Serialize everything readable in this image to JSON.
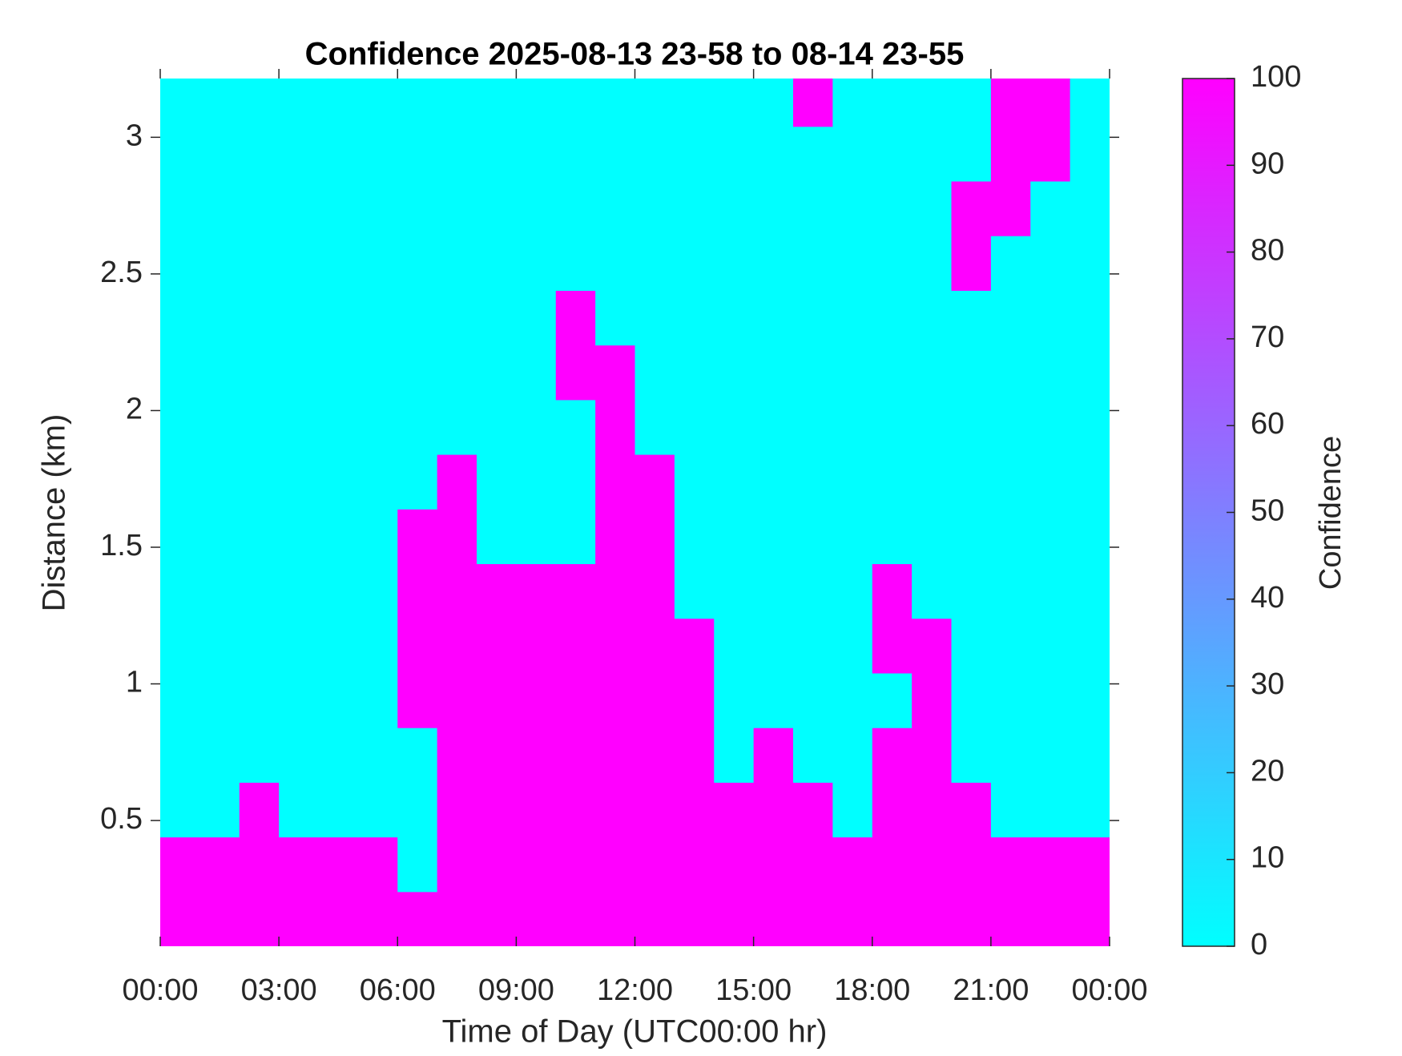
{
  "chart_data": {
    "type": "heatmap",
    "title": "Confidence 2025-08-13 23-58 to 08-14 23-55",
    "x_label": "Time of Day (UTC00:00 hr)",
    "y_label": "Distance (km)",
    "colorbar_label": "Confidence",
    "colormap": [
      "#00ffff",
      "#ff00ff"
    ],
    "x": [
      0.5,
      1.5,
      2.5,
      3.5,
      4.5,
      5.5,
      6.5,
      7.5,
      8.5,
      9.5,
      10.5,
      11.5,
      12.5,
      13.5,
      14.5,
      15.5,
      16.5,
      17.5,
      18.5,
      19.5,
      20.5,
      21.5,
      22.5,
      23.5
    ],
    "y": [
      0.14,
      0.34,
      0.54,
      0.74,
      0.94,
      1.14,
      1.34,
      1.54,
      1.74,
      1.94,
      2.14,
      2.34,
      2.54,
      2.74,
      2.94,
      3.14
    ],
    "z": [
      [
        100,
        100,
        100,
        100,
        100,
        100,
        100,
        100,
        100,
        100,
        100,
        100,
        100,
        100,
        100,
        100,
        100,
        100,
        100,
        100,
        100,
        100,
        100,
        100
      ],
      [
        100,
        100,
        100,
        100,
        100,
        100,
        0,
        100,
        100,
        100,
        100,
        100,
        100,
        100,
        100,
        100,
        100,
        100,
        100,
        100,
        100,
        100,
        100,
        100
      ],
      [
        0,
        0,
        100,
        0,
        0,
        0,
        0,
        100,
        100,
        100,
        100,
        100,
        100,
        100,
        100,
        100,
        100,
        0,
        100,
        100,
        100,
        0,
        0,
        0
      ],
      [
        0,
        0,
        0,
        0,
        0,
        0,
        0,
        100,
        100,
        100,
        100,
        100,
        100,
        100,
        0,
        100,
        0,
        0,
        100,
        100,
        0,
        0,
        0,
        0
      ],
      [
        0,
        0,
        0,
        0,
        0,
        0,
        100,
        100,
        100,
        100,
        100,
        100,
        100,
        100,
        0,
        0,
        0,
        0,
        0,
        100,
        0,
        0,
        0,
        0
      ],
      [
        0,
        0,
        0,
        0,
        0,
        0,
        100,
        100,
        100,
        100,
        100,
        100,
        100,
        100,
        0,
        0,
        0,
        0,
        100,
        100,
        0,
        0,
        0,
        0
      ],
      [
        0,
        0,
        0,
        0,
        0,
        0,
        100,
        100,
        100,
        100,
        100,
        100,
        100,
        0,
        0,
        0,
        0,
        0,
        100,
        0,
        0,
        0,
        0,
        0
      ],
      [
        0,
        0,
        0,
        0,
        0,
        0,
        100,
        100,
        0,
        0,
        0,
        100,
        100,
        0,
        0,
        0,
        0,
        0,
        0,
        0,
        0,
        0,
        0,
        0
      ],
      [
        0,
        0,
        0,
        0,
        0,
        0,
        0,
        100,
        0,
        0,
        0,
        100,
        100,
        0,
        0,
        0,
        0,
        0,
        0,
        0,
        0,
        0,
        0,
        0
      ],
      [
        0,
        0,
        0,
        0,
        0,
        0,
        0,
        0,
        0,
        0,
        0,
        100,
        0,
        0,
        0,
        0,
        0,
        0,
        0,
        0,
        0,
        0,
        0,
        0
      ],
      [
        0,
        0,
        0,
        0,
        0,
        0,
        0,
        0,
        0,
        0,
        100,
        100,
        0,
        0,
        0,
        0,
        0,
        0,
        0,
        0,
        0,
        0,
        0,
        0
      ],
      [
        0,
        0,
        0,
        0,
        0,
        0,
        0,
        0,
        0,
        0,
        100,
        0,
        0,
        0,
        0,
        0,
        0,
        0,
        0,
        0,
        0,
        0,
        0,
        0
      ],
      [
        0,
        0,
        0,
        0,
        0,
        0,
        0,
        0,
        0,
        0,
        0,
        0,
        0,
        0,
        0,
        0,
        0,
        0,
        0,
        0,
        100,
        0,
        0,
        0
      ],
      [
        0,
        0,
        0,
        0,
        0,
        0,
        0,
        0,
        0,
        0,
        0,
        0,
        0,
        0,
        0,
        0,
        0,
        0,
        0,
        0,
        100,
        100,
        0,
        0
      ],
      [
        0,
        0,
        0,
        0,
        0,
        0,
        0,
        0,
        0,
        0,
        0,
        0,
        0,
        0,
        0,
        0,
        0,
        0,
        0,
        0,
        0,
        100,
        100,
        0
      ],
      [
        0,
        0,
        0,
        0,
        0,
        0,
        0,
        0,
        0,
        0,
        0,
        0,
        0,
        0,
        0,
        0,
        100,
        0,
        0,
        0,
        0,
        100,
        100,
        0
      ]
    ],
    "xlim": [
      0,
      24
    ],
    "xticks": [
      {
        "value": 0,
        "label": "00:00"
      },
      {
        "value": 3,
        "label": "03:00"
      },
      {
        "value": 6,
        "label": "06:00"
      },
      {
        "value": 9,
        "label": "09:00"
      },
      {
        "value": 12,
        "label": "12:00"
      },
      {
        "value": 15,
        "label": "15:00"
      },
      {
        "value": 18,
        "label": "18:00"
      },
      {
        "value": 21,
        "label": "21:00"
      },
      {
        "value": 24,
        "label": "00:00"
      }
    ],
    "ylim": [
      0.04,
      3.215
    ],
    "yticks": [
      0.5,
      1,
      1.5,
      2,
      2.5,
      3
    ],
    "clim": [
      0,
      100
    ],
    "cticks": [
      0,
      10,
      20,
      30,
      40,
      50,
      60,
      70,
      80,
      90,
      100
    ]
  }
}
